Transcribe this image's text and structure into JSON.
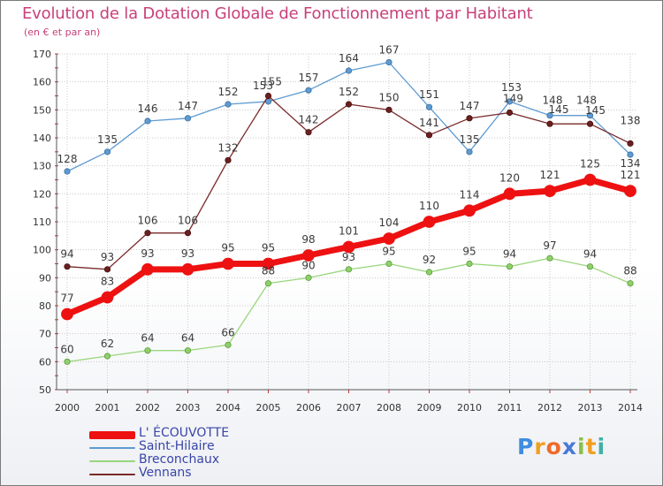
{
  "title": "Evolution de la Dotation Globale de Fonctionnement par Habitant",
  "subtitle": "(en € et par an)",
  "logo": {
    "letters": [
      "P",
      "r",
      "o",
      "x",
      "i",
      "t",
      "i"
    ],
    "colors": [
      "#3e8de0",
      "#f0a020",
      "#f06a2a",
      "#4a78d8",
      "#88c048",
      "#f0a020",
      "#3fb0a8"
    ]
  },
  "chart_data": {
    "type": "line",
    "title": "Evolution de la Dotation Globale de Fonctionnement par Habitant",
    "subtitle": "(en € et par an)",
    "xlabel": "",
    "ylabel": "",
    "ylim": [
      50,
      170
    ],
    "yticks": [
      50,
      60,
      70,
      80,
      90,
      100,
      110,
      120,
      130,
      140,
      150,
      160,
      170
    ],
    "grid": true,
    "legend_position": "bottom-left",
    "x": [
      "2000",
      "2001",
      "2002",
      "2003",
      "2004",
      "2005",
      "2006",
      "2007",
      "2008",
      "2009",
      "2010",
      "2011",
      "2012",
      "2013",
      "2014"
    ],
    "series": [
      {
        "name": "Saint-Hilaire",
        "color": "#5e9bd2",
        "values": [
          128,
          135,
          146,
          147,
          152,
          153,
          157,
          164,
          167,
          151,
          135,
          153,
          148,
          148,
          134
        ],
        "labels": [
          "128",
          "135",
          "146",
          "147",
          "152",
          "153",
          "157",
          "164",
          "167",
          "151",
          "135",
          "153",
          "148",
          "148",
          "134"
        ]
      },
      {
        "name": "Vennans",
        "color": "#7a2a2a",
        "values": [
          94,
          93,
          106,
          106,
          132,
          155,
          142,
          152,
          150,
          141,
          147,
          149,
          145,
          145,
          138
        ],
        "labels": [
          "94",
          "93",
          "106",
          "106",
          "132",
          "155",
          "142",
          "152",
          "150",
          "141",
          "147",
          "149",
          "145",
          "145",
          "138"
        ]
      },
      {
        "name": "Breconchaux",
        "color": "#98d67a",
        "values": [
          60,
          62,
          64,
          64,
          66,
          88,
          90,
          93,
          95,
          92,
          95,
          94,
          97,
          94,
          88
        ],
        "labels": [
          "60",
          "62",
          "64",
          "64",
          "66",
          "88",
          "90",
          "93",
          "95",
          "92",
          "95",
          "94",
          "97",
          "94",
          "88"
        ]
      },
      {
        "name": "L' ÉCOUVOTTE",
        "color": "#ee1111",
        "values": [
          77,
          83,
          93,
          93,
          95,
          95,
          98,
          101,
          104,
          110,
          114,
          120,
          121,
          125,
          121
        ],
        "labels": [
          "77",
          "83",
          "93",
          "93",
          "95",
          "95",
          "98",
          "101",
          "104",
          "110",
          "114",
          "120",
          "121",
          "125",
          "121"
        ]
      }
    ],
    "legend": [
      "L' ÉCOUVOTTE",
      "Saint-Hilaire",
      "Breconchaux",
      "Vennans"
    ]
  }
}
